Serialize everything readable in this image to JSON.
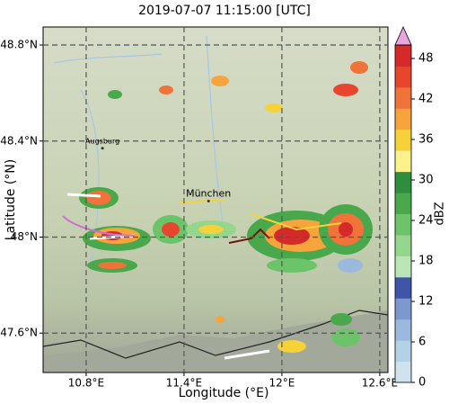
{
  "chart_data": {
    "type": "radar-map",
    "title": "2019-07-07 11:15:00 [UTC]",
    "x_label": "Longitude (°E)",
    "y_label": "Latitude (°N)",
    "xlim": [
      10.536,
      12.65
    ],
    "ylim": [
      47.436,
      48.875
    ],
    "xticks": [
      {
        "value": 10.8,
        "label": "10.8°E"
      },
      {
        "value": 11.4,
        "label": "11.4°E"
      },
      {
        "value": 12.0,
        "label": "12°E"
      },
      {
        "value": 12.6,
        "label": "12.6°E"
      }
    ],
    "yticks": [
      {
        "value": 47.6,
        "label": "47.6°N"
      },
      {
        "value": 48.0,
        "label": "48°N"
      },
      {
        "value": 48.4,
        "label": "48.4°N"
      },
      {
        "value": 48.8,
        "label": "48.8°N"
      }
    ],
    "grid": true,
    "places": [
      {
        "name": "Augsburg",
        "lon": 10.9,
        "lat": 48.37
      },
      {
        "name": "München",
        "lon": 11.55,
        "lat": 48.15
      }
    ],
    "colorbar": {
      "label": "dBZ",
      "clim": [
        0,
        50
      ],
      "ticks": [
        0,
        6,
        12,
        18,
        24,
        30,
        36,
        42,
        48
      ],
      "colors": [
        "#cfe3ee",
        "#b4d2e6",
        "#9bb9dc",
        "#7c98cf",
        "#3f55a8",
        "#b9e6b4",
        "#94d68d",
        "#6cc36a",
        "#4aa84c",
        "#2f8e3d",
        "#fbf28c",
        "#f5d23a",
        "#f7a43d",
        "#f0733a",
        "#e8452e",
        "#d62a2a"
      ],
      "extend_color": "#e8a6e0"
    }
  }
}
